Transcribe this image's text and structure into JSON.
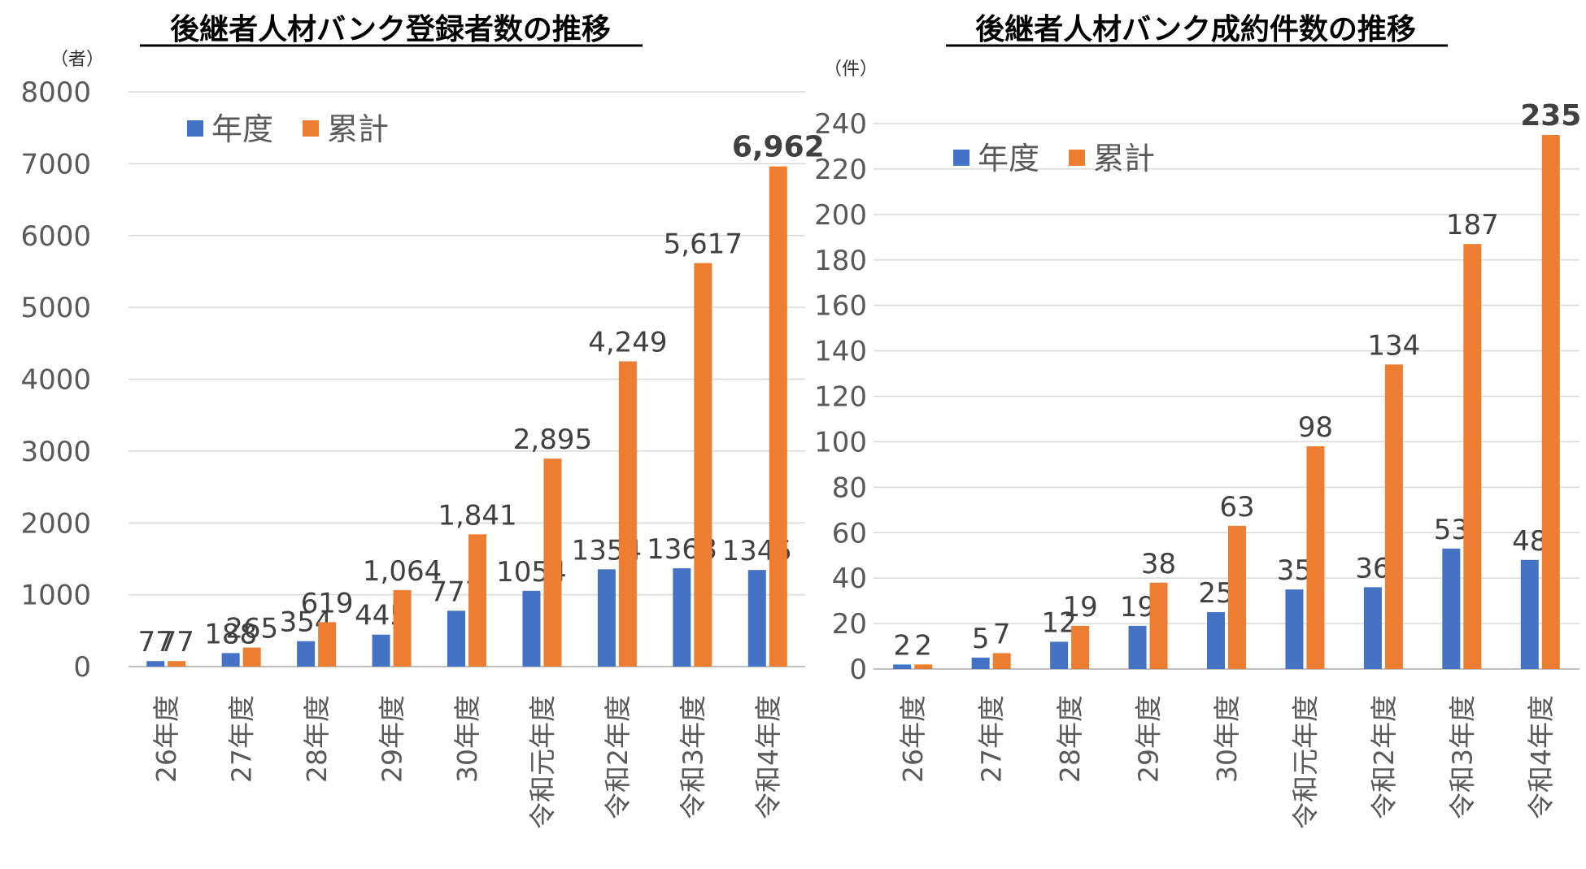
{
  "chart_data": [
    {
      "type": "bar",
      "title": "後継者人材バンク登録者数の推移",
      "unit_label": "（者）",
      "categories": [
        "26年度",
        "27年度",
        "28年度",
        "29年度",
        "30年度",
        "令和元年度",
        "令和2年度",
        "令和3年度",
        "令和4年度"
      ],
      "series": [
        {
          "name": "年度",
          "color": "#4472C4",
          "values": [
            77,
            188,
            354,
            445,
            777,
            1054,
            1354,
            1368,
            1345
          ],
          "labels": [
            "77",
            "188",
            "354",
            "445",
            "777",
            "1054",
            "1354",
            "1368",
            "1345"
          ]
        },
        {
          "name": "累計",
          "color": "#ED7D31",
          "values": [
            77,
            265,
            619,
            1064,
            1841,
            2895,
            4249,
            5617,
            6962
          ],
          "labels": [
            "77",
            "265",
            "619",
            "1,064",
            "1,841",
            "2,895",
            "4,249",
            "5,617",
            "6,962"
          ]
        }
      ],
      "ylim": [
        0,
        8000
      ],
      "yticks": [
        "0",
        "1000",
        "2000",
        "3000",
        "4000",
        "5000",
        "6000",
        "7000",
        "8000"
      ],
      "grid": true,
      "legend_position": "top-left",
      "emphasized_label": "6,962"
    },
    {
      "type": "bar",
      "title": "後継者人材バンク成約件数の推移",
      "unit_label": "（件）",
      "categories": [
        "26年度",
        "27年度",
        "28年度",
        "29年度",
        "30年度",
        "令和元年度",
        "令和2年度",
        "令和3年度",
        "令和4年度"
      ],
      "series": [
        {
          "name": "年度",
          "color": "#4472C4",
          "values": [
            2,
            5,
            12,
            19,
            25,
            35,
            36,
            53,
            48
          ],
          "labels": [
            "2",
            "5",
            "12",
            "19",
            "25",
            "35",
            "36",
            "53",
            "48"
          ]
        },
        {
          "name": "累計",
          "color": "#ED7D31",
          "values": [
            2,
            7,
            19,
            38,
            63,
            98,
            134,
            187,
            235
          ],
          "labels": [
            "2",
            "7",
            "19",
            "38",
            "63",
            "98",
            "134",
            "187",
            "235"
          ]
        }
      ],
      "ylim": [
        0,
        240
      ],
      "yticks": [
        "0",
        "20",
        "40",
        "60",
        "80",
        "100",
        "120",
        "140",
        "160",
        "180",
        "200",
        "220",
        "240"
      ],
      "grid": true,
      "legend_position": "top-left",
      "emphasized_label": "235"
    }
  ]
}
